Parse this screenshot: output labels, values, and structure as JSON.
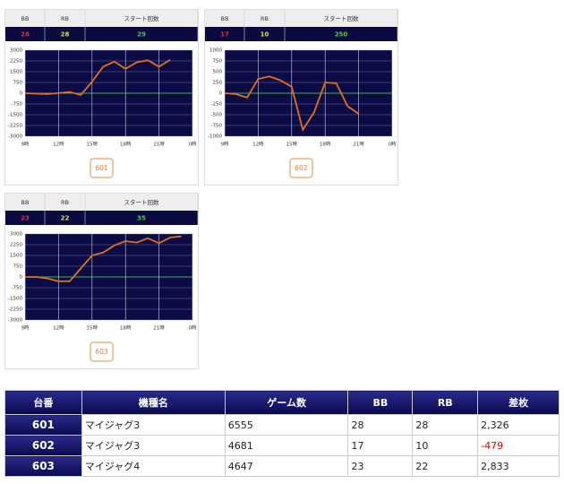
{
  "chart_data": [
    {
      "type": "line",
      "xlim": [
        9,
        24
      ],
      "xticks": [
        {
          "value": 9,
          "label": "9時"
        },
        {
          "value": 12,
          "label": "12時"
        },
        {
          "value": 15,
          "label": "15時"
        },
        {
          "value": 18,
          "label": "18時"
        },
        {
          "value": 21,
          "label": "21時"
        },
        {
          "value": 24,
          "label": "0時"
        }
      ],
      "ylim": [
        -3000,
        3000
      ],
      "yticks": [
        -3000,
        -2250,
        -1500,
        -750,
        0,
        750,
        1500,
        2250,
        3000
      ],
      "grid": true,
      "series": [
        {
          "color": "#e07020",
          "x": [
            9,
            11,
            13,
            14,
            15,
            16,
            17,
            18,
            19,
            20,
            21,
            22
          ],
          "values": [
            0,
            -60,
            80,
            -120,
            800,
            1850,
            2200,
            1700,
            2150,
            2300,
            1850,
            2326
          ]
        }
      ]
    },
    {
      "type": "line",
      "xlim": [
        9,
        24
      ],
      "xticks": [
        {
          "value": 9,
          "label": "9時"
        },
        {
          "value": 12,
          "label": "12時"
        },
        {
          "value": 15,
          "label": "15時"
        },
        {
          "value": 18,
          "label": "18時"
        },
        {
          "value": 21,
          "label": "21時"
        },
        {
          "value": 24,
          "label": "0時"
        }
      ],
      "ylim": [
        -1000,
        1000
      ],
      "yticks": [
        -1000,
        -750,
        -500,
        -250,
        0,
        250,
        500,
        750,
        1000
      ],
      "grid": true,
      "series": [
        {
          "color": "#e07020",
          "x": [
            9,
            10,
            11,
            12,
            13,
            14,
            15,
            16,
            17,
            18,
            19,
            20,
            21
          ],
          "values": [
            0,
            -20,
            -100,
            330,
            390,
            300,
            150,
            -850,
            -450,
            250,
            230,
            -300,
            -479
          ]
        }
      ]
    },
    {
      "type": "line",
      "xlim": [
        9,
        24
      ],
      "xticks": [
        {
          "value": 9,
          "label": "9時"
        },
        {
          "value": 12,
          "label": "12時"
        },
        {
          "value": 15,
          "label": "15時"
        },
        {
          "value": 18,
          "label": "18時"
        },
        {
          "value": 21,
          "label": "21時"
        },
        {
          "value": 24,
          "label": "0時"
        }
      ],
      "ylim": [
        -3000,
        3000
      ],
      "yticks": [
        -3000,
        -2250,
        -1500,
        -750,
        0,
        750,
        1500,
        2250,
        3000
      ],
      "grid": true,
      "series": [
        {
          "color": "#e07020",
          "x": [
            9,
            10,
            11,
            12,
            13,
            14,
            15,
            16,
            17,
            18,
            19,
            20,
            21,
            22,
            23
          ],
          "values": [
            0,
            0,
            -100,
            -300,
            -300,
            600,
            1500,
            1700,
            2200,
            2500,
            2400,
            2700,
            2350,
            2750,
            2833
          ]
        }
      ]
    }
  ],
  "panels": [
    {
      "headers": [
        "BB",
        "RB",
        "スタート回数"
      ],
      "values": [
        "28",
        "28",
        "29"
      ],
      "button": "601"
    },
    {
      "headers": [
        "BB",
        "RB",
        "スタート回数"
      ],
      "values": [
        "17",
        "10",
        "250"
      ],
      "button": "602"
    },
    {
      "headers": [
        "BB",
        "RB",
        "スタート回数"
      ],
      "values": [
        "23",
        "22",
        "35"
      ],
      "button": "603"
    }
  ],
  "table": {
    "columns": [
      "台番",
      "機種名",
      "ゲーム数",
      "BB",
      "RB",
      "差枚"
    ],
    "rows": [
      [
        "601",
        "マイジャグ3",
        "6555",
        "28",
        "28",
        "2,326"
      ],
      [
        "602",
        "マイジャグ3",
        "4681",
        "17",
        "10",
        "-479"
      ],
      [
        "603",
        "マイジャグ4",
        "4647",
        "23",
        "22",
        "2,833"
      ]
    ]
  }
}
